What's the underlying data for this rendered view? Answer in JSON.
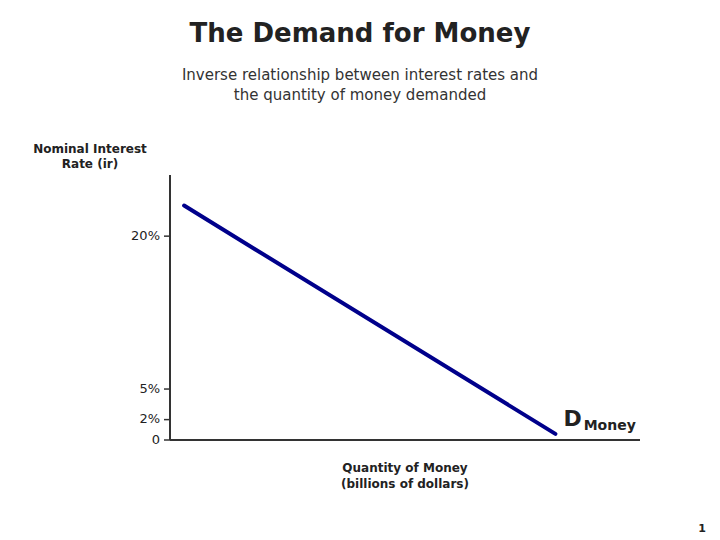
{
  "chart_data": {
    "type": "line",
    "title": "The Demand for Money",
    "subtitle": "Inverse relationship between interest rates and\nthe quantity of money demanded",
    "xlabel": "Quantity of Money\n(billions of dollars)",
    "ylabel": "Nominal Interest\nRate (ir)",
    "annotations": [
      "D",
      "Money"
    ],
    "page_number": "1",
    "x": [
      0.03,
      0.82
    ],
    "series": [
      {
        "color": "#00008B",
        "values": [
          23,
          0.6
        ]
      }
    ],
    "xlim": [
      0,
      1
    ],
    "ylim": [
      0,
      26
    ],
    "yticks": [
      0,
      {
        "value": 2,
        "label": "2%"
      },
      {
        "value": 5,
        "label": "5%"
      },
      {
        "value": 20,
        "label": "20%"
      }
    ],
    "tick_labels": "y",
    "grid": false
  }
}
